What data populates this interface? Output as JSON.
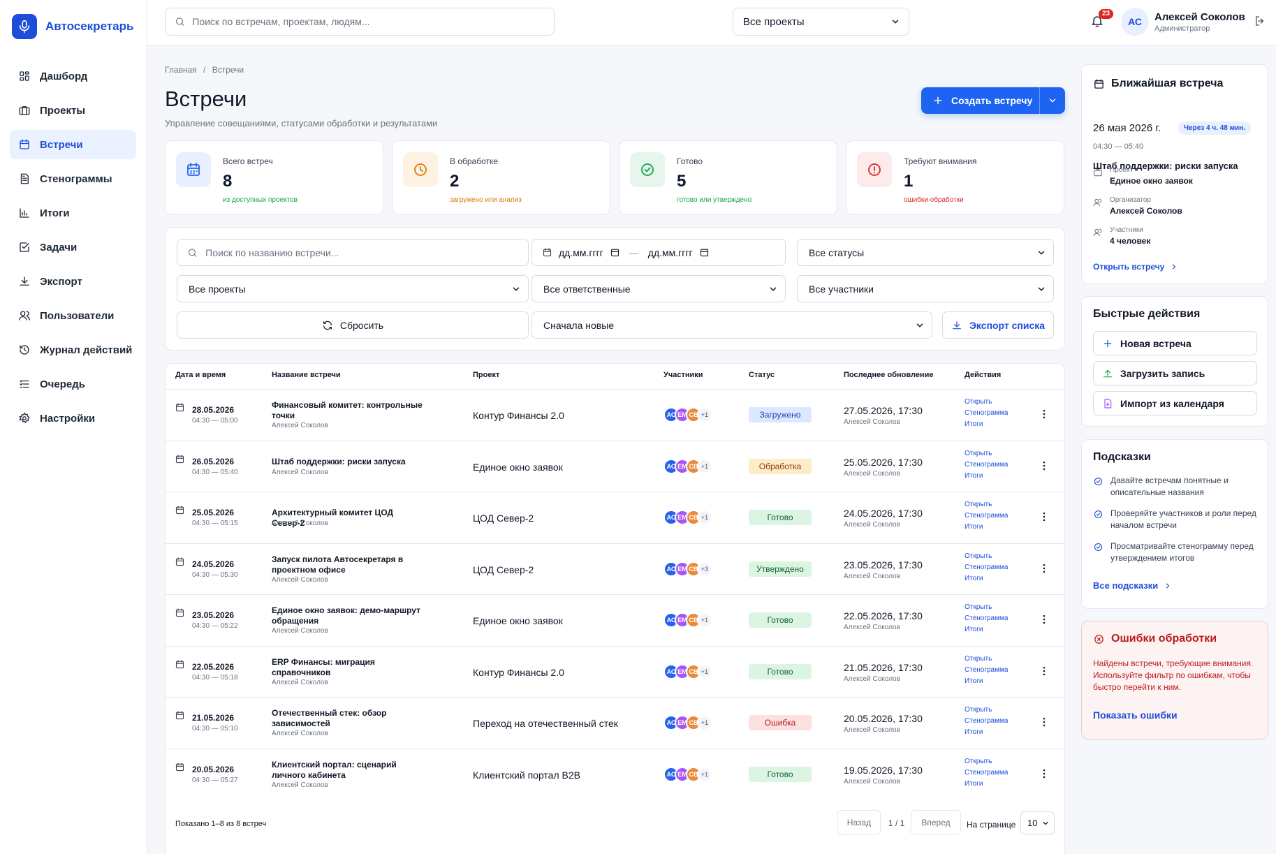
{
  "app": {
    "name": "Автосекретарь"
  },
  "sidebar": {
    "items": [
      {
        "label": "Дашборд",
        "icon": "dashboard-icon"
      },
      {
        "label": "Проекты",
        "icon": "briefcase-icon"
      },
      {
        "label": "Встречи",
        "icon": "calendar-icon",
        "active": true
      },
      {
        "label": "Стенограммы",
        "icon": "document-icon"
      },
      {
        "label": "Итоги",
        "icon": "bar-chart-icon"
      },
      {
        "label": "Задачи",
        "icon": "checkbox-icon"
      },
      {
        "label": "Экспорт",
        "icon": "download-icon"
      },
      {
        "label": "Пользователи",
        "icon": "users-icon"
      },
      {
        "label": "Журнал действий",
        "icon": "history-icon"
      },
      {
        "label": "Очередь",
        "icon": "queue-icon"
      },
      {
        "label": "Настройки",
        "icon": "gear-icon"
      }
    ]
  },
  "header": {
    "search_placeholder": "Поиск по встречам, проектам, людям...",
    "project_select": "Все проекты",
    "notifications_count": "23",
    "user": {
      "initials": "АС",
      "name": "Алексей Соколов",
      "role": "Администратор"
    }
  },
  "breadcrumb": {
    "home": "Главная",
    "sep": "/",
    "current": "Встречи"
  },
  "page": {
    "title": "Встречи",
    "subtitle": "Управление совещаниями, статусами обработки и результатами",
    "create_label": "Создать встречу"
  },
  "stats": [
    {
      "label": "Всего встреч",
      "value": "8",
      "note": "из доступных проектов",
      "color": "#1d64f2",
      "bg": "#e8efff",
      "note_color": "#16a34a"
    },
    {
      "label": "В обработке",
      "value": "2",
      "note": "загружено или анализ",
      "color": "#d97706",
      "bg": "#fef3e2",
      "note_color": "#d97706"
    },
    {
      "label": "Готово",
      "value": "5",
      "note": "готово или утверждено",
      "color": "#16a34a",
      "bg": "#e6f6ec",
      "note_color": "#16a34a"
    },
    {
      "label": "Требуют внимания",
      "value": "1",
      "note": "ошибки обработки",
      "color": "#dc2626",
      "bg": "#fdeaea",
      "note_color": "#dc2626"
    }
  ],
  "filters": {
    "search_placeholder": "Поиск по названию встречи...",
    "date_from": "дд.мм.гггг",
    "date_sep": "—",
    "date_to": "дд.мм.гггг",
    "status": "Все статусы",
    "project": "Все проекты",
    "responsible": "Все ответственные",
    "participants": "Все участники",
    "reset_label": "Сбросить",
    "sort": "Сначала новые",
    "export_label": "Экспорт списка"
  },
  "table": {
    "columns": [
      "Дата и время",
      "Название встречи",
      "Проект",
      "Участники",
      "Статус",
      "Последнее обновление",
      "Действия"
    ],
    "link_labels": [
      "Открыть",
      "Стенограмма",
      "Итоги"
    ],
    "avatars": [
      {
        "initials": "АС",
        "color": "#2563eb"
      },
      {
        "initials": "ЕМ",
        "color": "#a855f7"
      },
      {
        "initials": "СВ",
        "color": "#ea8a3a"
      }
    ],
    "rows": [
      {
        "date": "28.05.2026",
        "time": "04:30 — 05:00",
        "title": "Финансовый комитет: контрольные точки",
        "organizer": "Алексей Соколов",
        "project": "Контур Финансы 2.0",
        "more": "+1",
        "status": "Загружено",
        "status_color": "#1e40af",
        "status_bg": "#dbe8ff",
        "updated": "27.05.2026, 17:30",
        "updated_by": "Алексей Соколов",
        "lines": 2
      },
      {
        "date": "26.05.2026",
        "time": "04:30 — 05:40",
        "title": "Штаб поддержки: риски запуска",
        "organizer": "Алексей Соколов",
        "project": "Единое окно заявок",
        "more": "+1",
        "status": "Обработка",
        "status_color": "#92400e",
        "status_bg": "#fdecc8",
        "updated": "25.05.2026, 17:30",
        "updated_by": "Алексей Соколов",
        "lines": 1
      },
      {
        "date": "25.05.2026",
        "time": "04:30 — 05:15",
        "title": "Архитектурный комитет ЦОД Север-2",
        "organizer": "Алексей Соколов",
        "project": "ЦОД Север-2",
        "more": "+1",
        "status": "Готово",
        "status_color": "#166534",
        "status_bg": "#dcf5e3",
        "updated": "24.05.2026, 17:30",
        "updated_by": "Алексей Соколов",
        "lines": 1
      },
      {
        "date": "24.05.2026",
        "time": "04:30 — 05:30",
        "title": "Запуск пилота Автосекретаря в проектном офисе",
        "organizer": "Алексей Соколов",
        "project": "ЦОД Север-2",
        "more": "+3",
        "status": "Утверждено",
        "status_color": "#166534",
        "status_bg": "#dcf5e3",
        "updated": "23.05.2026, 17:30",
        "updated_by": "Алексей Соколов",
        "lines": 2
      },
      {
        "date": "23.05.2026",
        "time": "04:30 — 05:22",
        "title": "Единое окно заявок: демо-маршрут обращения",
        "organizer": "Алексей Соколов",
        "project": "Единое окно заявок",
        "more": "+1",
        "status": "Готово",
        "status_color": "#166534",
        "status_bg": "#dcf5e3",
        "updated": "22.05.2026, 17:30",
        "updated_by": "Алексей Соколов",
        "lines": 2
      },
      {
        "date": "22.05.2026",
        "time": "04:30 — 05:18",
        "title": "ERP Финансы: миграция справочников",
        "organizer": "Алексей Соколов",
        "project": "Контур Финансы 2.0",
        "more": "+1",
        "status": "Готово",
        "status_color": "#166534",
        "status_bg": "#dcf5e3",
        "updated": "21.05.2026, 17:30",
        "updated_by": "Алексей Соколов",
        "lines": 2
      },
      {
        "date": "21.05.2026",
        "time": "04:30 — 05:10",
        "title": "Отечественный стек: обзор зависимостей",
        "organizer": "Алексей Соколов",
        "project": "Переход на отечественный стек",
        "more": "+1",
        "status": "Ошибка",
        "status_color": "#b91c1c",
        "status_bg": "#fde0e0",
        "updated": "20.05.2026, 17:30",
        "updated_by": "Алексей Соколов",
        "lines": 2
      },
      {
        "date": "20.05.2026",
        "time": "04:30 — 05:27",
        "title": "Клиентский портал: сценарий личного кабинета",
        "organizer": "Алексей Соколов",
        "project": "Клиентский портал B2B",
        "more": "+1",
        "status": "Готово",
        "status_color": "#166534",
        "status_bg": "#dcf5e3",
        "updated": "19.05.2026, 17:30",
        "updated_by": "Алексей Соколов",
        "lines": 2
      }
    ]
  },
  "pagination": {
    "summary": "Показано 1–8 из 8 встреч",
    "prev": "Назад",
    "info": "1 / 1",
    "next": "Вперед",
    "per_page_label": "На странице",
    "per_page": "10"
  },
  "next_meeting": {
    "title": "Ближайшая встреча",
    "date": "26 мая 2026 г.",
    "badge": "Через 4 ч. 48 мин.",
    "time": "04:30 — 05:40",
    "meeting_title": "Штаб поддержки: риски запуска",
    "project_label": "Проект",
    "project": "Единое окно заявок",
    "organizer_label": "Организатор",
    "organizer": "Алексей Соколов",
    "participants_label": "Участники",
    "participants": "4 человек",
    "link": "Открыть встречу"
  },
  "quick_actions": {
    "title": "Быстрые действия",
    "items": [
      "Новая встреча",
      "Загрузить запись",
      "Импорт из календаря"
    ]
  },
  "tips": {
    "title": "Подсказки",
    "items": [
      "Давайте встречам понятные и описательные названия",
      "Проверяйте участников и роли перед началом встречи",
      "Просматривайте стенограмму перед утверждением итогов"
    ],
    "link": "Все подсказки"
  },
  "errors": {
    "title": "Ошибки обработки",
    "text": "Найдены встречи, требующие внимания. Используйте фильтр по ошибкам, чтобы быстро перейти к ним.",
    "link": "Показать ошибки"
  }
}
